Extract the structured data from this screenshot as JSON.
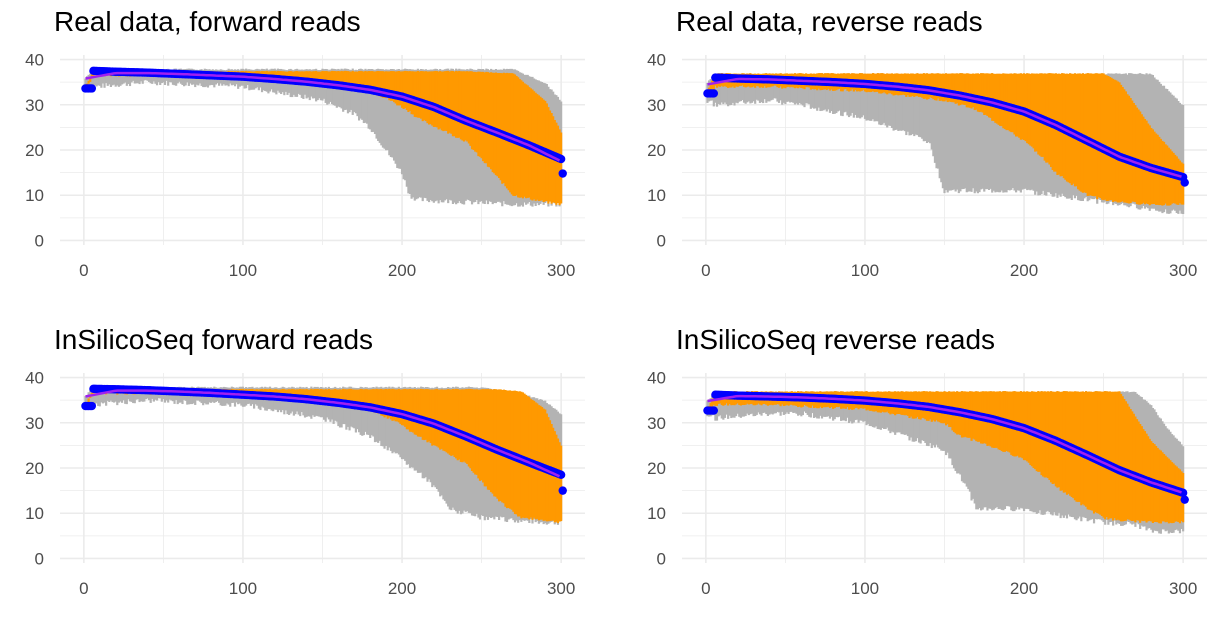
{
  "colors": {
    "range_band": "#b3b3b3",
    "iqr_band": "#ff9900",
    "mean_points": "#0000ff",
    "smooth_line": "#a020f0",
    "grid": "#ebebeb"
  },
  "chart_data": [
    {
      "type": "area",
      "title": "Real data, forward reads",
      "xlabel": "",
      "ylabel": "",
      "xlim": [
        -15,
        315
      ],
      "ylim": [
        -1,
        41
      ],
      "x_ticks": [
        0,
        100,
        200,
        300
      ],
      "x_tick_labels": [
        "0",
        "100",
        "200",
        "300"
      ],
      "y_ticks": [
        0,
        10,
        20,
        30,
        40
      ],
      "y_tick_labels": [
        "0",
        "10",
        "20",
        "30",
        "40"
      ],
      "grid": true,
      "range_band": {
        "x": [
          1,
          6,
          40,
          100,
          150,
          170,
          180,
          190,
          200,
          205,
          210,
          240,
          270,
          290,
          300
        ],
        "low": [
          33,
          34,
          35,
          34,
          31,
          28,
          25,
          20,
          15,
          10,
          9,
          8.5,
          8,
          8,
          8
        ],
        "high": [
          36,
          38,
          38,
          38,
          38,
          38,
          38,
          38,
          38,
          38,
          38,
          38,
          38,
          35,
          31
        ]
      },
      "iqr_band": {
        "x": [
          1,
          6,
          40,
          100,
          150,
          170,
          180,
          190,
          200,
          205,
          210,
          240,
          270,
          290,
          300
        ],
        "low": [
          33.5,
          36.5,
          36.5,
          36,
          35,
          34,
          33,
          31.5,
          29.5,
          28.5,
          27,
          22,
          10,
          8.5,
          8
        ],
        "high": [
          34,
          37.5,
          37.5,
          37.5,
          37.5,
          37.5,
          37.5,
          37.5,
          37.5,
          37.5,
          37.5,
          37.5,
          37,
          31,
          24
        ]
      },
      "mean": {
        "x": [
          1,
          5,
          6,
          20,
          40,
          60,
          80,
          100,
          120,
          140,
          160,
          180,
          200,
          220,
          240,
          260,
          280,
          300
        ],
        "y": [
          33.6,
          33.6,
          37.5,
          37.3,
          37.1,
          36.8,
          36.5,
          36.2,
          35.7,
          35.1,
          34.3,
          33.3,
          31.8,
          29.5,
          26.5,
          23.8,
          21,
          18
        ],
        "last_point": [
          301,
          14.8
        ]
      },
      "smooth": {
        "x": [
          1,
          20,
          40,
          60,
          80,
          100,
          120,
          140,
          160,
          180,
          200,
          220,
          240,
          260,
          280,
          300
        ],
        "y": [
          35.8,
          37,
          37,
          36.8,
          36.5,
          36.2,
          35.7,
          35.1,
          34.3,
          33.3,
          31.8,
          29.5,
          26.5,
          23.8,
          21,
          17.5
        ]
      }
    },
    {
      "type": "area",
      "title": "Real data, reverse reads",
      "xlabel": "",
      "ylabel": "",
      "xlim": [
        -15,
        315
      ],
      "ylim": [
        -1,
        41
      ],
      "x_ticks": [
        0,
        100,
        200,
        300
      ],
      "x_tick_labels": [
        "0",
        "100",
        "200",
        "300"
      ],
      "y_ticks": [
        0,
        10,
        20,
        30,
        40
      ],
      "y_tick_labels": [
        "0",
        "10",
        "20",
        "30",
        "40"
      ],
      "grid": true,
      "range_band": {
        "x": [
          1,
          6,
          40,
          60,
          100,
          140,
          150,
          170,
          200,
          220,
          240,
          260,
          280,
          300
        ],
        "low": [
          31,
          30,
          31,
          30,
          27,
          22,
          11,
          11,
          11,
          10,
          9,
          8,
          7,
          6
        ],
        "high": [
          35,
          37,
          37,
          37,
          37,
          37,
          37,
          37,
          37,
          37,
          37,
          37,
          37,
          30
        ]
      },
      "iqr_band": {
        "x": [
          1,
          6,
          40,
          100,
          150,
          170,
          200,
          210,
          220,
          240,
          250,
          260,
          280,
          300
        ],
        "low": [
          32,
          34,
          34,
          33,
          31,
          29,
          22,
          19,
          15,
          10,
          9,
          8.5,
          8,
          8
        ],
        "high": [
          33,
          37,
          37,
          37,
          37,
          37,
          37,
          37,
          37,
          37,
          37,
          35,
          25,
          17
        ]
      },
      "mean": {
        "x": [
          1,
          5,
          6,
          20,
          40,
          60,
          80,
          100,
          120,
          140,
          160,
          180,
          200,
          220,
          240,
          260,
          280,
          300
        ],
        "y": [
          32.5,
          32.5,
          36,
          35.8,
          35.6,
          35.3,
          35,
          34.6,
          34,
          33.2,
          32,
          30.5,
          28.5,
          25.5,
          22,
          18.5,
          16,
          14
        ],
        "last_point": [
          301,
          12.8
        ]
      },
      "smooth": {
        "x": [
          1,
          20,
          40,
          60,
          80,
          100,
          120,
          140,
          160,
          180,
          200,
          220,
          240,
          260,
          280,
          300
        ],
        "y": [
          34.5,
          35.7,
          35.6,
          35.3,
          35,
          34.6,
          34,
          33.2,
          32,
          30.5,
          28.5,
          25.5,
          22,
          18.5,
          16,
          14
        ]
      }
    },
    {
      "type": "area",
      "title": "InSilicoSeq forward reads",
      "xlabel": "",
      "ylabel": "",
      "xlim": [
        -15,
        315
      ],
      "ylim": [
        -1,
        41
      ],
      "x_ticks": [
        0,
        100,
        200,
        300
      ],
      "x_tick_labels": [
        "0",
        "100",
        "200",
        "300"
      ],
      "y_ticks": [
        0,
        10,
        20,
        30,
        40
      ],
      "y_tick_labels": [
        "0",
        "10",
        "20",
        "30",
        "40"
      ],
      "grid": true,
      "range_band": {
        "x": [
          1,
          6,
          40,
          100,
          150,
          180,
          200,
          210,
          220,
          230,
          250,
          270,
          290,
          300
        ],
        "low": [
          33,
          34,
          35,
          34,
          31,
          27,
          22,
          19,
          16,
          11,
          9,
          8.5,
          8,
          8
        ],
        "high": [
          36,
          38,
          38,
          38,
          38,
          38,
          38,
          38,
          38,
          38,
          38,
          37,
          35,
          32
        ]
      },
      "iqr_band": {
        "x": [
          1,
          6,
          40,
          100,
          150,
          170,
          180,
          200,
          210,
          240,
          260,
          275,
          290,
          300
        ],
        "low": [
          33.5,
          36.5,
          36.5,
          36,
          35,
          34,
          33,
          29.5,
          27,
          21,
          13,
          9,
          8.5,
          8
        ],
        "high": [
          34,
          37.5,
          37.5,
          37.5,
          37.5,
          37.5,
          37.5,
          37.5,
          37.5,
          37.5,
          37.5,
          37,
          33,
          25
        ]
      },
      "mean": {
        "x": [
          1,
          5,
          6,
          20,
          40,
          60,
          80,
          100,
          120,
          140,
          160,
          180,
          200,
          220,
          240,
          260,
          280,
          300
        ],
        "y": [
          33.7,
          33.7,
          37.5,
          37.4,
          37.2,
          36.9,
          36.6,
          36.2,
          35.8,
          35.2,
          34.4,
          33.4,
          31.9,
          29.8,
          27,
          24,
          21.2,
          18.5
        ],
        "last_point": [
          301,
          15
        ]
      },
      "smooth": {
        "x": [
          1,
          20,
          40,
          60,
          80,
          100,
          120,
          140,
          160,
          180,
          200,
          220,
          240,
          260,
          280,
          300
        ],
        "y": [
          35.8,
          37.1,
          37.1,
          36.9,
          36.6,
          36.2,
          35.8,
          35.2,
          34.4,
          33.4,
          31.9,
          29.8,
          27,
          24,
          21.2,
          18
        ]
      }
    },
    {
      "type": "area",
      "title": "InSilicoSeq reverse reads",
      "xlabel": "",
      "ylabel": "",
      "xlim": [
        -15,
        315
      ],
      "ylim": [
        -1,
        41
      ],
      "x_ticks": [
        0,
        100,
        200,
        300
      ],
      "x_tick_labels": [
        "0",
        "100",
        "200",
        "300"
      ],
      "y_ticks": [
        0,
        10,
        20,
        30,
        40
      ],
      "y_tick_labels": [
        "0",
        "10",
        "20",
        "30",
        "40"
      ],
      "grid": true,
      "range_band": {
        "x": [
          1,
          6,
          40,
          60,
          100,
          150,
          165,
          170,
          200,
          230,
          250,
          270,
          280,
          290,
          300
        ],
        "low": [
          32,
          31,
          32,
          32,
          30,
          24,
          15,
          11,
          11,
          9,
          8,
          7.5,
          6,
          6,
          6
        ],
        "high": [
          35,
          37,
          37,
          37,
          37,
          37,
          37,
          37,
          37,
          37,
          37,
          37,
          34,
          29,
          25
        ]
      },
      "iqr_band": {
        "x": [
          1,
          6,
          40,
          100,
          150,
          160,
          170,
          200,
          220,
          240,
          250,
          260,
          280,
          300
        ],
        "low": [
          32.5,
          34,
          34,
          33,
          30,
          27,
          26,
          22,
          16,
          11,
          9,
          8.5,
          8,
          8
        ],
        "high": [
          33,
          37,
          37,
          37,
          37,
          37,
          37,
          37,
          37,
          37,
          37,
          37,
          26,
          19
        ]
      },
      "mean": {
        "x": [
          1,
          5,
          6,
          20,
          40,
          60,
          80,
          100,
          120,
          140,
          160,
          180,
          200,
          220,
          240,
          260,
          280,
          300
        ],
        "y": [
          32.7,
          32.7,
          36.2,
          36,
          35.8,
          35.6,
          35.3,
          34.9,
          34.3,
          33.5,
          32.3,
          30.8,
          28.8,
          26,
          22.8,
          19.5,
          16.8,
          14.5
        ],
        "last_point": [
          301,
          13
        ]
      },
      "smooth": {
        "x": [
          1,
          20,
          40,
          60,
          80,
          100,
          120,
          140,
          160,
          180,
          200,
          220,
          240,
          260,
          280,
          300
        ],
        "y": [
          34.8,
          35.9,
          35.8,
          35.6,
          35.3,
          34.9,
          34.3,
          33.5,
          32.3,
          30.8,
          28.8,
          26,
          22.8,
          19.5,
          16.8,
          14.5
        ]
      }
    }
  ]
}
